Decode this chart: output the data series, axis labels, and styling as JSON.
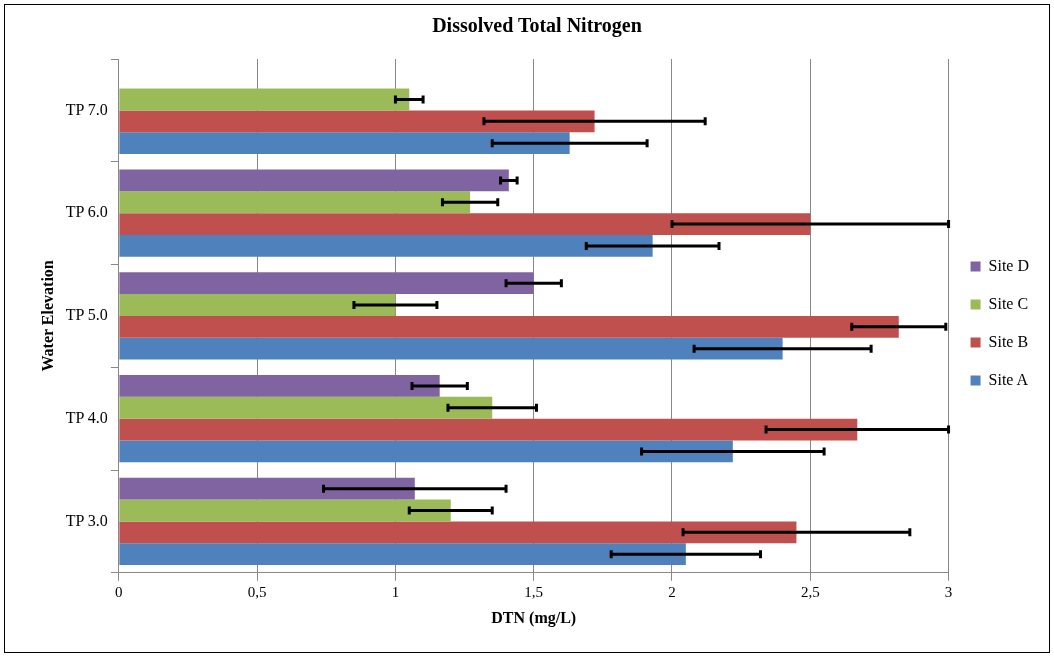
{
  "chart_data": {
    "type": "bar",
    "orientation": "horizontal",
    "title": "Dissolved Total Nitrogen",
    "xlabel": "DTN (mg/L)",
    "ylabel": "Water Elevation",
    "categories": [
      "TP 7.0",
      "TP 6.0",
      "TP 5.0",
      "TP 4.0",
      "TP 3.0"
    ],
    "series": [
      {
        "name": "Site D",
        "color": "#8064a2",
        "values": [
          null,
          1.41,
          1.5,
          1.16,
          1.07
        ],
        "errors": [
          null,
          0.03,
          0.1,
          0.1,
          0.33
        ]
      },
      {
        "name": "Site C",
        "color": "#9bbb59",
        "values": [
          1.05,
          1.27,
          1.0,
          1.35,
          1.2
        ],
        "errors": [
          0.05,
          0.1,
          0.15,
          0.16,
          0.15
        ]
      },
      {
        "name": "Site B",
        "color": "#c0504d",
        "values": [
          1.72,
          2.5,
          2.82,
          2.67,
          2.45
        ],
        "errors": [
          0.4,
          0.5,
          0.17,
          0.33,
          0.41
        ]
      },
      {
        "name": "Site A",
        "color": "#4f81bd",
        "values": [
          1.63,
          1.93,
          2.4,
          2.22,
          2.05
        ],
        "errors": [
          0.28,
          0.24,
          0.32,
          0.33,
          0.27
        ]
      }
    ],
    "xlim": [
      0,
      3
    ],
    "xticks": [
      0,
      {
        "value": 0.5,
        "label": "0,5"
      },
      1,
      {
        "value": 1.5,
        "label": "1,5"
      },
      2,
      {
        "value": 2.5,
        "label": "2,5"
      },
      3
    ],
    "grid": "x",
    "legend": "right"
  }
}
